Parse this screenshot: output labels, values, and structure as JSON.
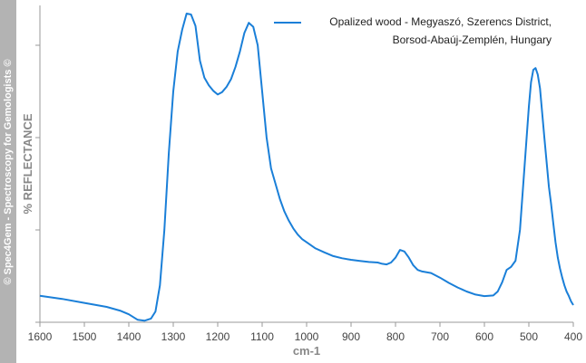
{
  "watermark": "© Spec4Gem - Spectroscopy for Gemologists ©",
  "chart_data": {
    "type": "line",
    "xlabel": "cm-1",
    "ylabel": "% REFLECTANCE",
    "xlim": [
      1600,
      400
    ],
    "ylim": [
      0,
      100
    ],
    "x_reversed": true,
    "x_ticks": [
      1600,
      1500,
      1400,
      1300,
      1200,
      1100,
      1000,
      900,
      800,
      700,
      600,
      500,
      400
    ],
    "x_tick_labels": [
      "1600",
      "1500",
      "1400",
      "1300",
      "1200",
      "1100",
      "1000",
      "900",
      "800",
      "700",
      "600",
      "500",
      "400"
    ],
    "y_ticks": [
      0,
      30,
      60,
      90
    ],
    "grid": false,
    "legend_position": "top-right",
    "line_color": "#1a7fd8",
    "series": [
      {
        "name": "Opalized wood - Megyaszó, Szerencs District, Borsod-Abaúj-Zemplén, Hungary",
        "x": [
          1600,
          1550,
          1500,
          1450,
          1420,
          1400,
          1380,
          1365,
          1350,
          1340,
          1330,
          1320,
          1310,
          1300,
          1290,
          1280,
          1270,
          1260,
          1250,
          1240,
          1230,
          1220,
          1210,
          1200,
          1190,
          1180,
          1170,
          1160,
          1150,
          1140,
          1130,
          1120,
          1110,
          1100,
          1090,
          1080,
          1070,
          1060,
          1050,
          1040,
          1030,
          1020,
          1010,
          1000,
          980,
          960,
          940,
          920,
          900,
          880,
          860,
          840,
          830,
          820,
          810,
          800,
          790,
          780,
          770,
          760,
          750,
          740,
          720,
          700,
          680,
          660,
          640,
          620,
          600,
          580,
          570,
          560,
          550,
          540,
          530,
          520,
          510,
          500,
          495,
          490,
          485,
          480,
          475,
          470,
          465,
          460,
          455,
          450,
          445,
          440,
          435,
          430,
          425,
          420,
          415,
          410,
          405,
          400
        ],
        "y": [
          8.6,
          7.6,
          6.3,
          5.0,
          3.8,
          2.6,
          0.8,
          0.5,
          1.2,
          3.5,
          12.0,
          30.0,
          55.0,
          75.0,
          88.0,
          95.0,
          100.3,
          100.0,
          96.3,
          85.0,
          79.5,
          77.0,
          75.2,
          74.0,
          74.8,
          76.5,
          79.0,
          83.0,
          88.0,
          94.0,
          97.3,
          96.0,
          90.0,
          75.0,
          60.0,
          50.0,
          45.0,
          40.0,
          36.0,
          33.0,
          30.5,
          28.5,
          27.0,
          26.0,
          24.0,
          22.7,
          21.5,
          20.8,
          20.3,
          19.9,
          19.6,
          19.4,
          19.0,
          18.8,
          19.4,
          21.0,
          23.5,
          23.0,
          21.0,
          18.5,
          17.0,
          16.5,
          16.0,
          14.5,
          12.8,
          11.3,
          10.0,
          9.0,
          8.5,
          8.7,
          10.0,
          13.0,
          17.0,
          18.0,
          20.0,
          30.0,
          50.0,
          70.0,
          78.0,
          82.0,
          82.6,
          80.5,
          76.0,
          68.0,
          60.0,
          52.0,
          44.0,
          38.5,
          32.0,
          26.0,
          21.0,
          17.5,
          14.5,
          12.0,
          10.0,
          8.5,
          6.8,
          5.6
        ]
      }
    ]
  }
}
